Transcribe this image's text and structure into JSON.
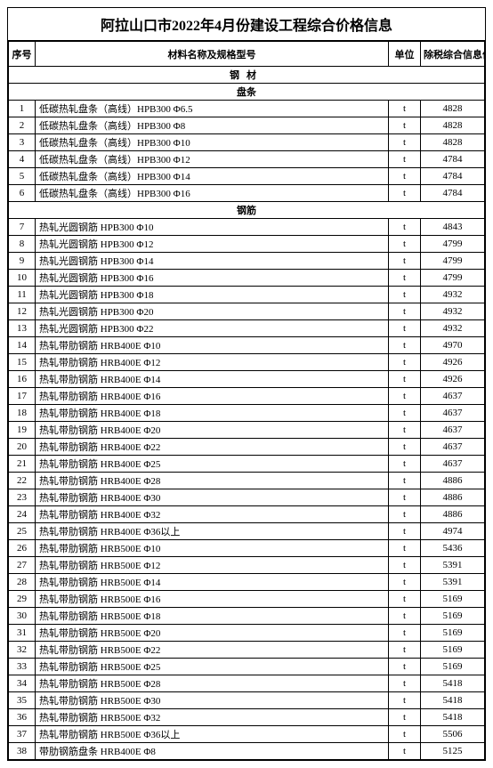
{
  "title": "阿拉山口市2022年4月份建设工程综合价格信息",
  "headers": {
    "seq": "序号",
    "name": "材料名称及规格型号",
    "unit": "单位",
    "price": "除税综合信息价"
  },
  "section1": "钢材",
  "subsection1": "盘条",
  "subsection2": "钢筋",
  "rows1": [
    {
      "seq": "1",
      "name": "低碳热轧盘条（高线）HPB300 Φ6.5",
      "unit": "t",
      "price": "4828"
    },
    {
      "seq": "2",
      "name": "低碳热轧盘条（高线）HPB300 Φ8",
      "unit": "t",
      "price": "4828"
    },
    {
      "seq": "3",
      "name": "低碳热轧盘条（高线）HPB300 Φ10",
      "unit": "t",
      "price": "4828"
    },
    {
      "seq": "4",
      "name": "低碳热轧盘条（高线）HPB300 Φ12",
      "unit": "t",
      "price": "4784"
    },
    {
      "seq": "5",
      "name": "低碳热轧盘条（高线）HPB300 Φ14",
      "unit": "t",
      "price": "4784"
    },
    {
      "seq": "6",
      "name": "低碳热轧盘条（高线）HPB300 Φ16",
      "unit": "t",
      "price": "4784"
    }
  ],
  "rows2": [
    {
      "seq": "7",
      "name": "热轧光圆钢筋 HPB300 Φ10",
      "unit": "t",
      "price": "4843"
    },
    {
      "seq": "8",
      "name": "热轧光圆钢筋 HPB300 Φ12",
      "unit": "t",
      "price": "4799"
    },
    {
      "seq": "9",
      "name": "热轧光圆钢筋 HPB300 Φ14",
      "unit": "t",
      "price": "4799"
    },
    {
      "seq": "10",
      "name": "热轧光圆钢筋 HPB300 Φ16",
      "unit": "t",
      "price": "4799"
    },
    {
      "seq": "11",
      "name": "热轧光圆钢筋 HPB300 Φ18",
      "unit": "t",
      "price": "4932"
    },
    {
      "seq": "12",
      "name": "热轧光圆钢筋 HPB300 Φ20",
      "unit": "t",
      "price": "4932"
    },
    {
      "seq": "13",
      "name": "热轧光圆钢筋 HPB300 Φ22",
      "unit": "t",
      "price": "4932"
    },
    {
      "seq": "14",
      "name": "热轧带肋钢筋 HRB400E Φ10",
      "unit": "t",
      "price": "4970"
    },
    {
      "seq": "15",
      "name": "热轧带肋钢筋 HRB400E Φ12",
      "unit": "t",
      "price": "4926"
    },
    {
      "seq": "16",
      "name": "热轧带肋钢筋 HRB400E Φ14",
      "unit": "t",
      "price": "4926"
    },
    {
      "seq": "17",
      "name": "热轧带肋钢筋 HRB400E Φ16",
      "unit": "t",
      "price": "4637"
    },
    {
      "seq": "18",
      "name": "热轧带肋钢筋 HRB400E Φ18",
      "unit": "t",
      "price": "4637"
    },
    {
      "seq": "19",
      "name": "热轧带肋钢筋 HRB400E Φ20",
      "unit": "t",
      "price": "4637"
    },
    {
      "seq": "20",
      "name": "热轧带肋钢筋 HRB400E Φ22",
      "unit": "t",
      "price": "4637"
    },
    {
      "seq": "21",
      "name": "热轧带肋钢筋 HRB400E Φ25",
      "unit": "t",
      "price": "4637"
    },
    {
      "seq": "22",
      "name": "热轧带肋钢筋 HRB400E Φ28",
      "unit": "t",
      "price": "4886"
    },
    {
      "seq": "23",
      "name": "热轧带肋钢筋 HRB400E Φ30",
      "unit": "t",
      "price": "4886"
    },
    {
      "seq": "24",
      "name": "热轧带肋钢筋 HRB400E Φ32",
      "unit": "t",
      "price": "4886"
    },
    {
      "seq": "25",
      "name": "热轧带肋钢筋 HRB400E Φ36以上",
      "unit": "t",
      "price": "4974"
    },
    {
      "seq": "26",
      "name": "热轧带肋钢筋 HRB500E Φ10",
      "unit": "t",
      "price": "5436"
    },
    {
      "seq": "27",
      "name": "热轧带肋钢筋 HRB500E Φ12",
      "unit": "t",
      "price": "5391"
    },
    {
      "seq": "28",
      "name": "热轧带肋钢筋 HRB500E Φ14",
      "unit": "t",
      "price": "5391"
    },
    {
      "seq": "29",
      "name": "热轧带肋钢筋 HRB500E Φ16",
      "unit": "t",
      "price": "5169"
    },
    {
      "seq": "30",
      "name": "热轧带肋钢筋 HRB500E Φ18",
      "unit": "t",
      "price": "5169"
    },
    {
      "seq": "31",
      "name": "热轧带肋钢筋 HRB500E Φ20",
      "unit": "t",
      "price": "5169"
    },
    {
      "seq": "32",
      "name": "热轧带肋钢筋 HRB500E Φ22",
      "unit": "t",
      "price": "5169"
    },
    {
      "seq": "33",
      "name": "热轧带肋钢筋 HRB500E Φ25",
      "unit": "t",
      "price": "5169"
    },
    {
      "seq": "34",
      "name": "热轧带肋钢筋 HRB500E Φ28",
      "unit": "t",
      "price": "5418"
    },
    {
      "seq": "35",
      "name": "热轧带肋钢筋 HRB500E Φ30",
      "unit": "t",
      "price": "5418"
    },
    {
      "seq": "36",
      "name": "热轧带肋钢筋 HRB500E Φ32",
      "unit": "t",
      "price": "5418"
    },
    {
      "seq": "37",
      "name": "热轧带肋钢筋 HRB500E Φ36以上",
      "unit": "t",
      "price": "5506"
    },
    {
      "seq": "38",
      "name": "带肋钢筋盘条 HRB400E Φ8",
      "unit": "t",
      "price": "5125"
    }
  ]
}
